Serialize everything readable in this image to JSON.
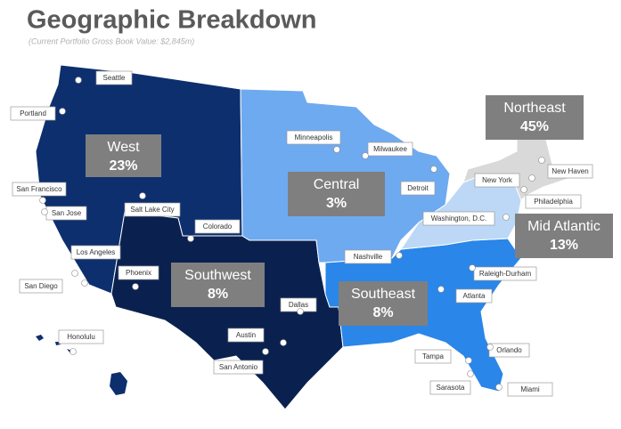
{
  "header": {
    "title": "Geographic Breakdown",
    "subtitle": "(Current Portfolio Gross Book Value: $2,845m)"
  },
  "regions": [
    {
      "name": "West",
      "share": "23%"
    },
    {
      "name": "Central",
      "share": "3%"
    },
    {
      "name": "Northeast",
      "share": "45%"
    },
    {
      "name": "Mid Atlantic",
      "share": "13%"
    },
    {
      "name": "Southwest",
      "share": "8%"
    },
    {
      "name": "Southeast",
      "share": "8%"
    }
  ],
  "cities": [
    "Seattle",
    "Portland",
    "Minneapolis",
    "Milwaukee",
    "Detroit",
    "New York",
    "New Haven",
    "Philadelphia",
    "Washington, D.C.",
    "San Francisco",
    "San Jose",
    "Salt Lake City",
    "Colorado",
    "Nashville",
    "Raleigh-Durham",
    "Los Angeles",
    "San Diego",
    "Phoenix",
    "Atlanta",
    "Dallas",
    "Honolulu",
    "Austin",
    "San Antonio",
    "Orlando",
    "Tampa",
    "Sarasota",
    "Miami"
  ]
}
